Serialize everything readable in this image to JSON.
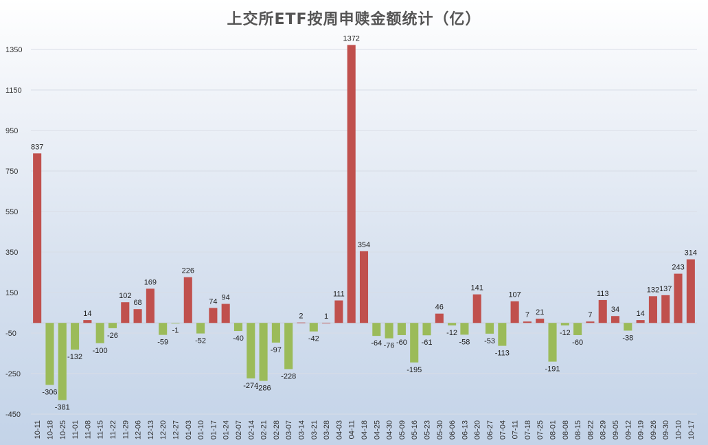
{
  "chart_data": {
    "type": "bar",
    "title": "上交所ETF按周申赎金额统计（亿）",
    "xlabel": "",
    "ylabel": "",
    "ylim": [
      -450,
      1350
    ],
    "yticks": [
      1350,
      1150,
      950,
      750,
      550,
      350,
      150,
      -50,
      -250,
      -450
    ],
    "grid": true,
    "legend": "none",
    "colors": {
      "positive": "#c0504d",
      "negative": "#9bbb59"
    },
    "categories": [
      "10-11",
      "10-18",
      "10-25",
      "11-01",
      "11-08",
      "11-15",
      "11-22",
      "11-29",
      "12-06",
      "12-13",
      "12-20",
      "12-27",
      "01-03",
      "01-10",
      "01-17",
      "01-24",
      "02-07",
      "02-14",
      "02-21",
      "02-28",
      "03-07",
      "03-14",
      "03-21",
      "03-28",
      "04-03",
      "04-11",
      "04-18",
      "04-25",
      "04-30",
      "05-09",
      "05-16",
      "05-23",
      "05-30",
      "06-06",
      "06-13",
      "06-20",
      "06-27",
      "07-04",
      "07-11",
      "07-18",
      "07-25",
      "08-01",
      "08-08",
      "08-15",
      "08-22",
      "08-29",
      "09-05",
      "09-12",
      "09-19",
      "09-26",
      "09-30",
      "10-10",
      "10-17"
    ],
    "values": [
      837,
      -306,
      -381,
      -132,
      14,
      -100,
      -26,
      102,
      68,
      169,
      -59,
      -1,
      226,
      -52,
      74,
      94,
      -40,
      -274,
      -286,
      -97,
      -228,
      2,
      -42,
      1,
      111,
      1372,
      354,
      -64,
      -76,
      -60,
      -195,
      -61,
      46,
      -12,
      -58,
      141,
      -53,
      -113,
      107,
      7,
      21,
      -191,
      -12,
      -60,
      7,
      113,
      34,
      -38,
      14,
      132,
      137,
      243,
      314
    ]
  }
}
